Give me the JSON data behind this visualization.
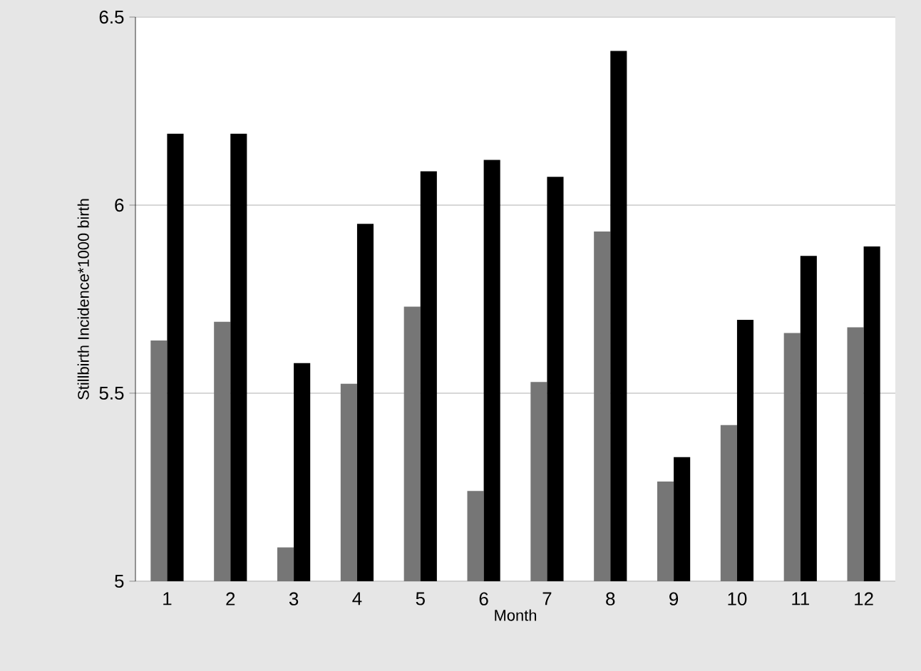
{
  "chart_data": {
    "type": "bar",
    "xlabel": "Month",
    "ylabel": "Stillbirth Incidence*1000 birth",
    "categories": [
      "1",
      "2",
      "3",
      "4",
      "5",
      "6",
      "7",
      "8",
      "9",
      "10",
      "11",
      "12"
    ],
    "series": [
      {
        "color": "#767676",
        "values": [
          5.64,
          5.69,
          5.09,
          5.525,
          5.73,
          5.24,
          5.53,
          5.93,
          5.265,
          5.415,
          5.66,
          5.675
        ]
      },
      {
        "color": "#000000",
        "values": [
          6.19,
          6.19,
          5.58,
          5.95,
          6.09,
          6.12,
          6.075,
          6.41,
          5.33,
          5.695,
          5.865,
          5.89
        ]
      }
    ],
    "ylim": [
      5,
      6.5
    ],
    "yticks": [
      5,
      5.5,
      6,
      6.5
    ],
    "grid": "y"
  }
}
